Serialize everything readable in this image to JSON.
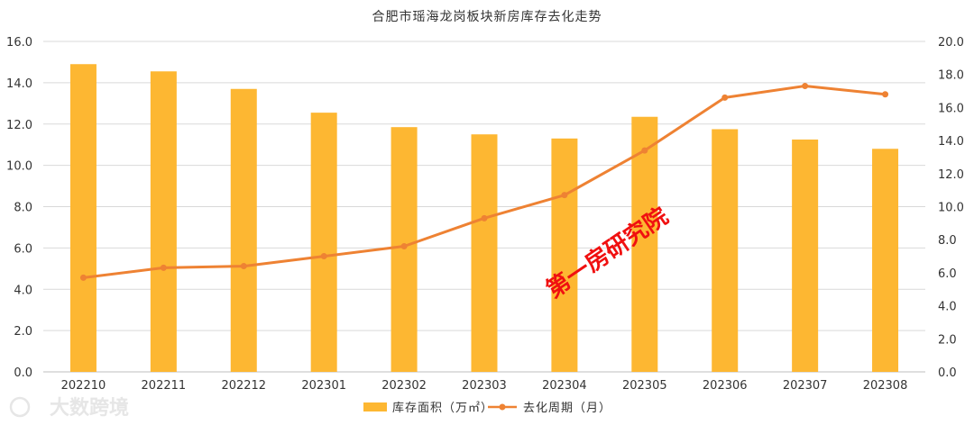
{
  "chart_data": {
    "type": "bar+line",
    "title": "合肥市瑶海龙岗板块新房库存去化走势",
    "categories": [
      "202210",
      "202211",
      "202212",
      "202301",
      "202302",
      "202303",
      "202304",
      "202305",
      "202306",
      "202307",
      "202308"
    ],
    "series": [
      {
        "name": "库存面积（万㎡）",
        "type": "bar",
        "axis": "left",
        "color": "#FDB732",
        "values": [
          14.9,
          14.55,
          13.7,
          12.55,
          11.85,
          11.5,
          11.3,
          12.35,
          11.75,
          11.25,
          10.8
        ]
      },
      {
        "name": "去化周期（月）",
        "type": "line",
        "axis": "right",
        "color": "#EE8233",
        "values": [
          5.7,
          6.3,
          6.4,
          7.0,
          7.6,
          9.3,
          10.7,
          13.4,
          16.6,
          17.3,
          16.8
        ]
      }
    ],
    "y_left": {
      "min": 0,
      "max": 16,
      "step": 2,
      "ticks": [
        "0.0",
        "2.0",
        "4.0",
        "6.0",
        "8.0",
        "10.0",
        "12.0",
        "14.0",
        "16.0"
      ]
    },
    "y_right": {
      "min": 0,
      "max": 20,
      "step": 2,
      "ticks": [
        "0.0",
        "2.0",
        "4.0",
        "6.0",
        "8.0",
        "10.0",
        "12.0",
        "14.0",
        "16.0",
        "18.0",
        "20.0"
      ]
    },
    "grid": true,
    "legend_position": "bottom"
  },
  "watermark": "第一房研究院",
  "logo": {
    "text": "大数跨境",
    "mark": "D"
  }
}
